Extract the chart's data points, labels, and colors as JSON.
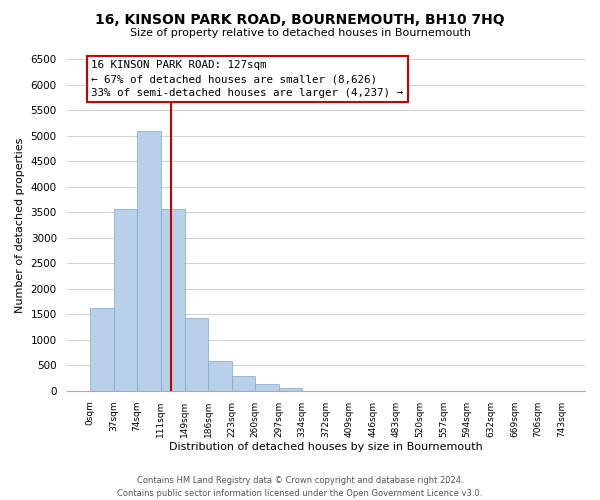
{
  "title": "16, KINSON PARK ROAD, BOURNEMOUTH, BH10 7HQ",
  "subtitle": "Size of property relative to detached houses in Bournemouth",
  "xlabel": "Distribution of detached houses by size in Bournemouth",
  "ylabel": "Number of detached properties",
  "bar_color": "#b8d0e8",
  "bin_edges": [
    0,
    37,
    74,
    111,
    149,
    186,
    223,
    260,
    297,
    334,
    372,
    409,
    446,
    483,
    520,
    557,
    594,
    632,
    669,
    706,
    743
  ],
  "bin_labels": [
    "0sqm",
    "37sqm",
    "74sqm",
    "111sqm",
    "149sqm",
    "186sqm",
    "223sqm",
    "260sqm",
    "297sqm",
    "334sqm",
    "372sqm",
    "409sqm",
    "446sqm",
    "483sqm",
    "520sqm",
    "557sqm",
    "594sqm",
    "632sqm",
    "669sqm",
    "706sqm",
    "743sqm"
  ],
  "bar_heights": [
    1630,
    3560,
    5080,
    3570,
    1420,
    580,
    295,
    140,
    55,
    0,
    0,
    0,
    0,
    0,
    0,
    0,
    0,
    0,
    0,
    0
  ],
  "ylim": [
    0,
    6500
  ],
  "yticks": [
    0,
    500,
    1000,
    1500,
    2000,
    2500,
    3000,
    3500,
    4000,
    4500,
    5000,
    5500,
    6000,
    6500
  ],
  "property_value": 127,
  "property_label": "16 KINSON PARK ROAD: 127sqm",
  "annotation_line1": "← 67% of detached houses are smaller (8,626)",
  "annotation_line2": "33% of semi-detached houses are larger (4,237) →",
  "vline_color": "#cc0000",
  "box_edge_color": "#cc0000",
  "footer_line1": "Contains HM Land Registry data © Crown copyright and database right 2024.",
  "footer_line2": "Contains public sector information licensed under the Open Government Licence v3.0.",
  "background_color": "#ffffff",
  "grid_color": "#d0d0d0"
}
